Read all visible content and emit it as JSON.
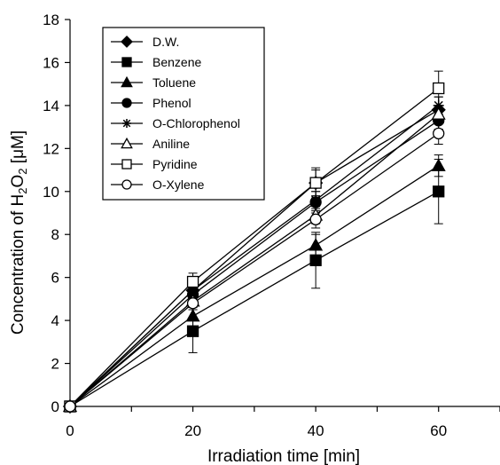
{
  "chart_data": {
    "type": "line",
    "xlabel": "Irradiation time [min]",
    "ylabel_parts": [
      "Concentration of H",
      "2",
      "O",
      "2",
      " [",
      "μ",
      "M]"
    ],
    "xlim": [
      0,
      70
    ],
    "ylim": [
      0,
      18
    ],
    "x_ticks": [
      0,
      20,
      40,
      60
    ],
    "x_minor_ticks": [
      10,
      30,
      50,
      70
    ],
    "y_ticks": [
      0,
      2,
      4,
      6,
      8,
      10,
      12,
      14,
      16,
      18
    ],
    "grid": false,
    "legend_position": "top-left",
    "x": [
      0,
      20,
      40,
      60
    ],
    "series": [
      {
        "name": "D.W.",
        "marker": "diamond-filled",
        "values": [
          0,
          5.4,
          10.4,
          13.8
        ],
        "errors": [
          0,
          0.3,
          0.6,
          0.6
        ]
      },
      {
        "name": "Benzene",
        "marker": "square-filled",
        "values": [
          0,
          3.5,
          6.8,
          10.0
        ],
        "errors": [
          0,
          1.0,
          1.3,
          1.5
        ]
      },
      {
        "name": "Toluene",
        "marker": "triangle-filled",
        "values": [
          0,
          4.2,
          7.5,
          11.2
        ],
        "errors": [
          0,
          0.5,
          0.5,
          0.5
        ]
      },
      {
        "name": "Phenol",
        "marker": "circle-filled",
        "values": [
          0,
          5.2,
          9.5,
          13.3
        ],
        "errors": [
          0,
          0.3,
          0.5,
          0.4
        ]
      },
      {
        "name": "O-Chlorophenol",
        "marker": "star",
        "values": [
          0,
          5.4,
          9.6,
          14.0
        ],
        "errors": [
          0,
          0.3,
          0.4,
          0.4
        ]
      },
      {
        "name": "Aniline",
        "marker": "triangle-open",
        "values": [
          0,
          4.9,
          8.9,
          13.6
        ],
        "errors": [
          0,
          0.3,
          0.4,
          0.4
        ]
      },
      {
        "name": "Pyridine",
        "marker": "square-open",
        "values": [
          0,
          5.8,
          10.4,
          14.8
        ],
        "errors": [
          0,
          0.4,
          0.7,
          0.8
        ]
      },
      {
        "name": "O-Xylene",
        "marker": "circle-open",
        "values": [
          0,
          4.8,
          8.7,
          12.7
        ],
        "errors": [
          0,
          0.3,
          0.4,
          0.5
        ]
      }
    ]
  }
}
